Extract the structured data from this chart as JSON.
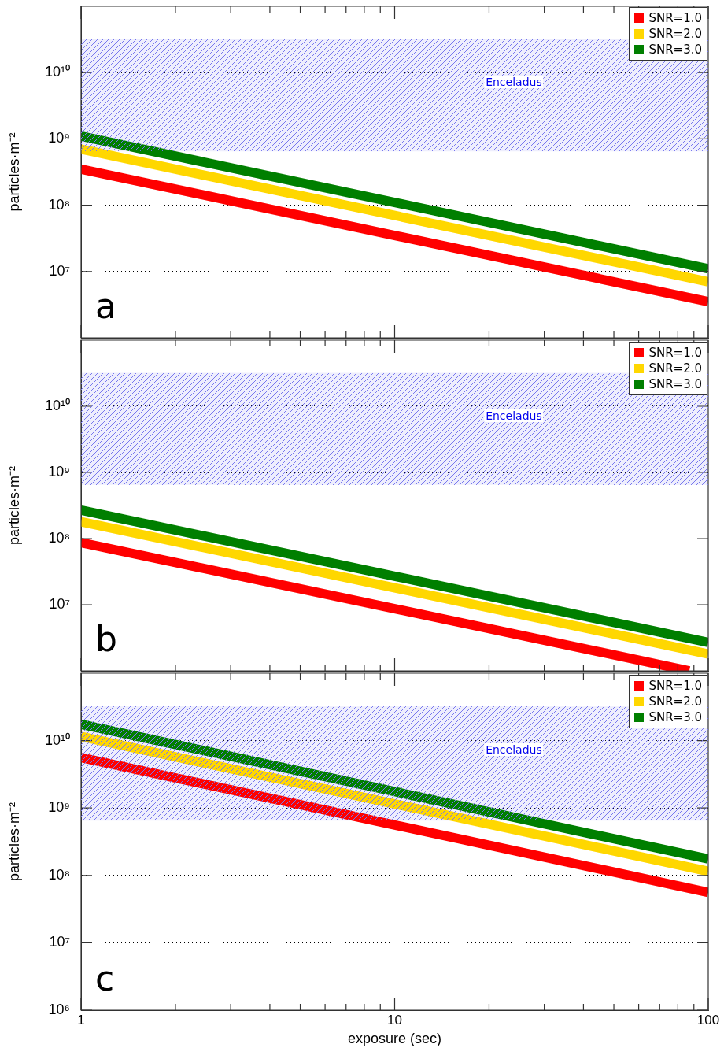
{
  "chart_data": [
    {
      "type": "line",
      "ylabel": "particles·m⁻²",
      "log": "xy",
      "grid": "y",
      "legend": "top right",
      "line_style": "solid",
      "marker": "none",
      "tick_labels": "y",
      "xlim": [
        1,
        100
      ],
      "ylim": [
        1000000,
        100000000000
      ],
      "xticks": [
        1,
        {
          "value": 2,
          "label": null
        },
        {
          "value": 3,
          "label": null
        },
        {
          "value": 4,
          "label": null
        },
        {
          "value": 5,
          "label": null
        },
        {
          "value": 6,
          "label": null
        },
        {
          "value": 7,
          "label": null
        },
        {
          "value": 8,
          "label": null
        },
        {
          "value": 9,
          "label": null
        },
        10,
        {
          "value": 20,
          "label": null
        },
        {
          "value": 30,
          "label": null
        },
        {
          "value": 40,
          "label": null
        },
        {
          "value": 50,
          "label": null
        },
        {
          "value": 60,
          "label": null
        },
        {
          "value": 70,
          "label": null
        },
        {
          "value": 80,
          "label": null
        },
        {
          "value": 90,
          "label": null
        },
        100
      ],
      "yticks": [
        {
          "value": 10000000,
          "label": "10⁷"
        },
        {
          "value": 100000000,
          "label": "10⁸"
        },
        {
          "value": 1000000000,
          "label": "10⁹"
        },
        {
          "value": 10000000000,
          "label": "10¹⁰"
        }
      ],
      "bands": [
        {
          "axis": "y",
          "from": 650000000,
          "to": 32000000000,
          "label": "Enceladus",
          "color": "#7777ee"
        }
      ],
      "annotations": [
        "a"
      ],
      "series": [
        {
          "name": "SNR=1.0",
          "color": "#ff0000",
          "x": [
            1,
            100
          ],
          "values": [
            350000000,
            3500000
          ]
        },
        {
          "name": "SNR=2.0",
          "color": "#ffd700",
          "x": [
            1,
            100
          ],
          "values": [
            700000000,
            7000000
          ]
        },
        {
          "name": "SNR=3.0",
          "color": "#007f00",
          "x": [
            1,
            100
          ],
          "values": [
            1100000000,
            11000000
          ]
        }
      ]
    },
    {
      "type": "line",
      "ylabel": "particles·m⁻²",
      "log": "xy",
      "grid": "y",
      "legend": "top right",
      "line_style": "solid",
      "marker": "none",
      "tick_labels": "y",
      "xlim": [
        1,
        100
      ],
      "ylim": [
        1000000,
        100000000000
      ],
      "xticks": [
        1,
        {
          "value": 2,
          "label": null
        },
        {
          "value": 3,
          "label": null
        },
        {
          "value": 4,
          "label": null
        },
        {
          "value": 5,
          "label": null
        },
        {
          "value": 6,
          "label": null
        },
        {
          "value": 7,
          "label": null
        },
        {
          "value": 8,
          "label": null
        },
        {
          "value": 9,
          "label": null
        },
        10,
        {
          "value": 20,
          "label": null
        },
        {
          "value": 30,
          "label": null
        },
        {
          "value": 40,
          "label": null
        },
        {
          "value": 50,
          "label": null
        },
        {
          "value": 60,
          "label": null
        },
        {
          "value": 70,
          "label": null
        },
        {
          "value": 80,
          "label": null
        },
        {
          "value": 90,
          "label": null
        },
        100
      ],
      "yticks": [
        {
          "value": 10000000,
          "label": "10⁷"
        },
        {
          "value": 100000000,
          "label": "10⁸"
        },
        {
          "value": 1000000000,
          "label": "10⁹"
        },
        {
          "value": 10000000000,
          "label": "10¹⁰"
        }
      ],
      "bands": [
        {
          "axis": "y",
          "from": 650000000,
          "to": 32000000000,
          "label": "Enceladus",
          "color": "#7777ee"
        }
      ],
      "annotations": [
        "b"
      ],
      "series": [
        {
          "name": "SNR=1.0",
          "color": "#ff0000",
          "x": [
            1,
            87
          ],
          "values": [
            87000000,
            1000000
          ]
        },
        {
          "name": "SNR=2.0",
          "color": "#ffd700",
          "x": [
            1,
            100
          ],
          "values": [
            180000000,
            1800000
          ]
        },
        {
          "name": "SNR=3.0",
          "color": "#007f00",
          "x": [
            1,
            100
          ],
          "values": [
            270000000,
            2700000
          ]
        }
      ]
    },
    {
      "type": "line",
      "xlabel": "exposure (sec)",
      "ylabel": "particles·m⁻²",
      "log": "xy",
      "grid": "y",
      "legend": "top right",
      "line_style": "solid",
      "marker": "none",
      "xlim": [
        1,
        100
      ],
      "ylim": [
        1000000,
        100000000000
      ],
      "xticks": [
        1,
        {
          "value": 2,
          "label": null
        },
        {
          "value": 3,
          "label": null
        },
        {
          "value": 4,
          "label": null
        },
        {
          "value": 5,
          "label": null
        },
        {
          "value": 6,
          "label": null
        },
        {
          "value": 7,
          "label": null
        },
        {
          "value": 8,
          "label": null
        },
        {
          "value": 9,
          "label": null
        },
        10,
        {
          "value": 20,
          "label": null
        },
        {
          "value": 30,
          "label": null
        },
        {
          "value": 40,
          "label": null
        },
        {
          "value": 50,
          "label": null
        },
        {
          "value": 60,
          "label": null
        },
        {
          "value": 70,
          "label": null
        },
        {
          "value": 80,
          "label": null
        },
        {
          "value": 90,
          "label": null
        },
        100
      ],
      "yticks": [
        {
          "value": 1000000,
          "label": "10⁶"
        },
        {
          "value": 10000000,
          "label": "10⁷"
        },
        {
          "value": 100000000,
          "label": "10⁸"
        },
        {
          "value": 1000000000,
          "label": "10⁹"
        },
        {
          "value": 10000000000,
          "label": "10¹⁰"
        }
      ],
      "bands": [
        {
          "axis": "y",
          "from": 650000000,
          "to": 32000000000,
          "label": "Enceladus",
          "color": "#7777ee"
        }
      ],
      "annotations": [
        "c"
      ],
      "series": [
        {
          "name": "SNR=1.0",
          "color": "#ff0000",
          "x": [
            1,
            100
          ],
          "values": [
            5600000000,
            56000000
          ]
        },
        {
          "name": "SNR=2.0",
          "color": "#ffd700",
          "x": [
            1,
            100
          ],
          "values": [
            11500000000,
            115000000
          ]
        },
        {
          "name": "SNR=3.0",
          "color": "#007f00",
          "x": [
            1,
            100
          ],
          "values": [
            17500000000,
            175000000
          ]
        }
      ]
    }
  ]
}
